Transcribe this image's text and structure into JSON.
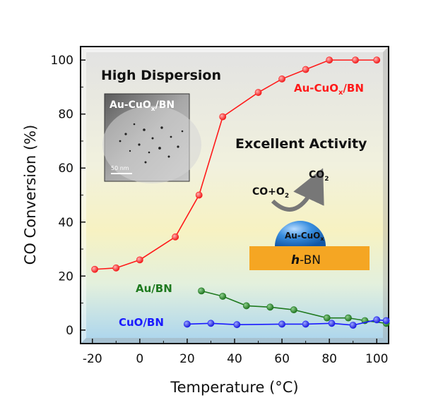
{
  "chart_data": {
    "type": "line",
    "xlabel": "Temperature (°C)",
    "ylabel": "CO Conversion (%)",
    "xlim": [
      -25,
      105
    ],
    "ylim": [
      -5,
      105
    ],
    "x_ticks": [
      "-20",
      "0",
      "20",
      "40",
      "60",
      "80",
      "100"
    ],
    "y_ticks": [
      "0",
      "20",
      "40",
      "60",
      "80",
      "100"
    ],
    "grid": false,
    "series": [
      {
        "name": "Au-CuOx/BN",
        "color": "#ff1a1a",
        "points": [
          [
            -19,
            22.5
          ],
          [
            -10,
            23
          ],
          [
            0,
            26
          ],
          [
            15,
            34.5
          ],
          [
            25,
            50
          ],
          [
            35,
            79
          ],
          [
            50,
            88
          ],
          [
            60,
            93
          ],
          [
            70,
            96.5
          ],
          [
            80,
            100
          ],
          [
            91,
            100
          ],
          [
            100,
            100
          ]
        ]
      },
      {
        "name": "Au/BN",
        "color": "#1f7a1f",
        "points": [
          [
            26,
            14.5
          ],
          [
            35,
            12.5
          ],
          [
            45,
            9
          ],
          [
            55,
            8.5
          ],
          [
            65,
            7.5
          ],
          [
            79,
            4.5
          ],
          [
            88,
            4.5
          ],
          [
            95,
            3.5
          ],
          [
            104,
            2.5
          ]
        ]
      },
      {
        "name": "CuO/BN",
        "color": "#1a1aff",
        "points": [
          [
            20,
            2.2
          ],
          [
            30,
            2.5
          ],
          [
            41,
            2
          ],
          [
            60,
            2.2
          ],
          [
            70,
            2.2
          ],
          [
            81,
            2.5
          ],
          [
            90,
            1.8
          ],
          [
            100,
            3.8
          ],
          [
            104,
            3.5
          ]
        ]
      }
    ]
  },
  "annotations": {
    "high_dispersion": "High Dispersion",
    "excellent_activity": "Excellent Activity",
    "inset_label": "Au-CuOx/BN",
    "scale_bar": "50 nm",
    "reaction": "CO+O2",
    "product": "CO2",
    "particle": "Au-CuOx",
    "support": "h-BN"
  },
  "colors": {
    "support_fill": "#f5a623",
    "particle_fill": "#2e86de",
    "arrow": "#777777"
  }
}
